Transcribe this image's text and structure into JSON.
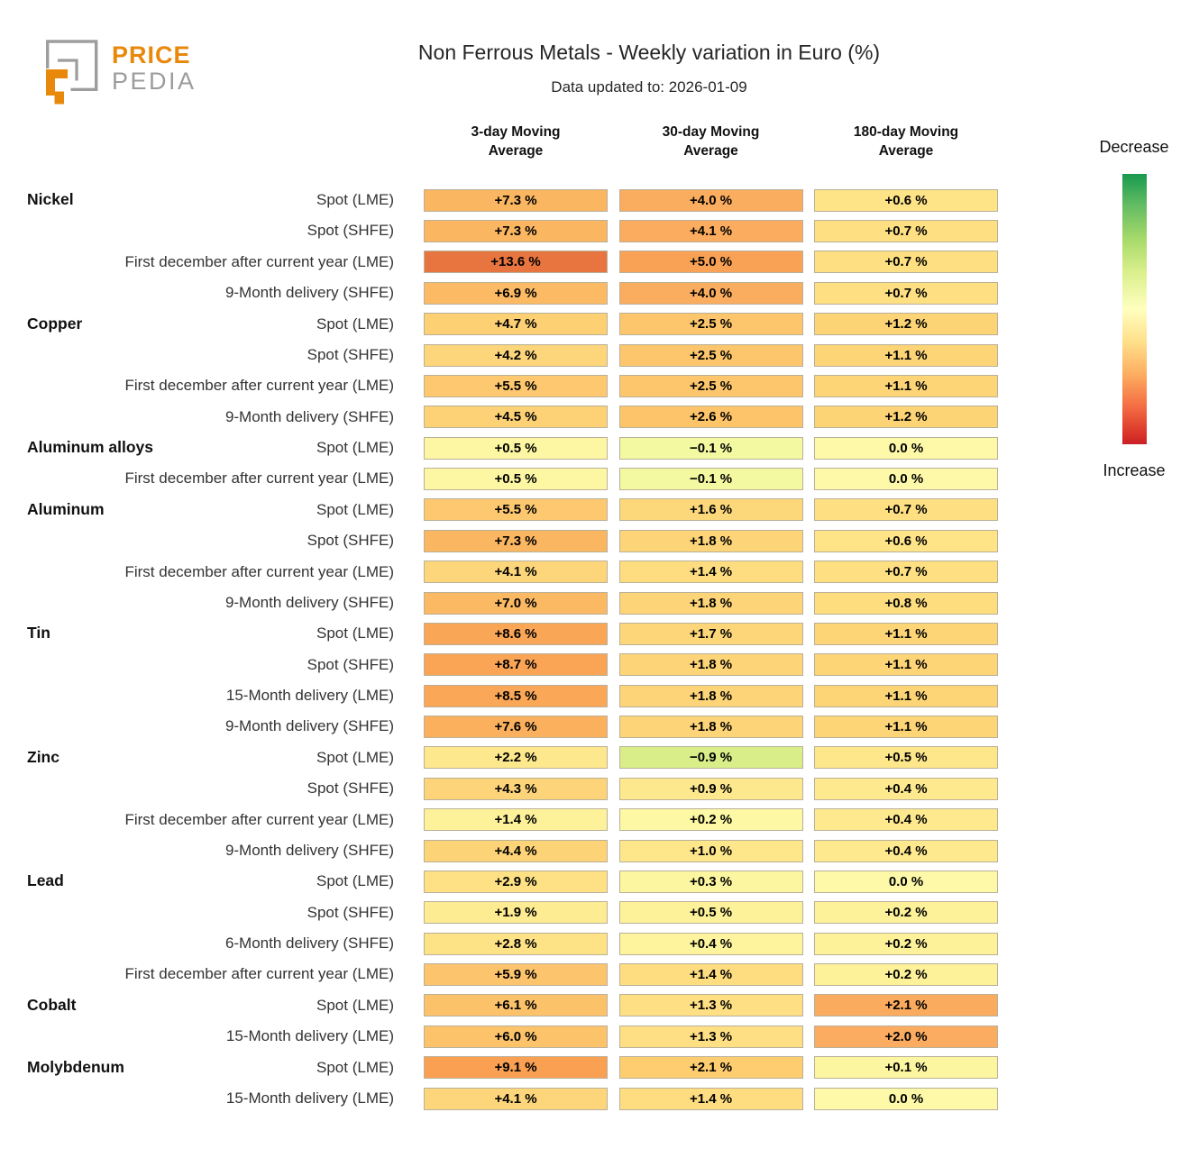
{
  "logo": {
    "line1": "PRICE",
    "line2": "PEDIA",
    "colors": {
      "orange": "#e8890c",
      "gray": "#9c9c9c"
    }
  },
  "chart_data": {
    "type": "heatmap",
    "title": "Non Ferrous Metals - Weekly variation in Euro (%)",
    "subtitle": "Data updated to: 2026-01-09",
    "columns": [
      "3-day Moving\nAverage",
      "30-day Moving\nAverage",
      "180-day Moving\nAverage"
    ],
    "unit": "%",
    "legend": {
      "top_label": "Decrease",
      "bottom_label": "Increase",
      "gradient": [
        "#18994f 0%",
        "#66bd63 12%",
        "#a6d96a 24%",
        "#d9ef8b 36%",
        "#ffffbf 50%",
        "#fee08b 62%",
        "#fdae61 74%",
        "#f46d43 86%",
        "#d73027 97%",
        "#c92027 100%"
      ]
    },
    "rows": [
      {
        "group": "Nickel",
        "label": "Spot (LME)",
        "values": [
          7.3,
          4.0,
          0.6
        ],
        "display": [
          "+7.3 %",
          "+4.0 %",
          "+0.6 %"
        ],
        "colors": [
          "#fbb661",
          "#fbad5f",
          "#fee387"
        ]
      },
      {
        "group": "",
        "label": "Spot (SHFE)",
        "values": [
          7.3,
          4.1,
          0.7
        ],
        "display": [
          "+7.3 %",
          "+4.1 %",
          "+0.7 %"
        ],
        "colors": [
          "#fbb661",
          "#fbac5e",
          "#fee083"
        ]
      },
      {
        "group": "",
        "label": "First december after current year (LME)",
        "values": [
          13.6,
          5.0,
          0.7
        ],
        "display": [
          "+13.6 %",
          "+5.0 %",
          "+0.7 %"
        ],
        "colors": [
          "#e8743f",
          "#f9a155",
          "#fee083"
        ]
      },
      {
        "group": "",
        "label": "9-Month delivery (SHFE)",
        "values": [
          6.9,
          4.0,
          0.7
        ],
        "display": [
          "+6.9 %",
          "+4.0 %",
          "+0.7 %"
        ],
        "colors": [
          "#fcba65",
          "#fbad5f",
          "#fee083"
        ]
      },
      {
        "group": "Copper",
        "label": "Spot (LME)",
        "values": [
          4.7,
          2.5,
          1.2
        ],
        "display": [
          "+4.7 %",
          "+2.5 %",
          "+1.2 %"
        ],
        "colors": [
          "#fdd074",
          "#fdc66c",
          "#fdd475"
        ]
      },
      {
        "group": "",
        "label": "Spot (SHFE)",
        "values": [
          4.2,
          2.5,
          1.1
        ],
        "display": [
          "+4.2 %",
          "+2.5 %",
          "+1.1 %"
        ],
        "colors": [
          "#fdd57a",
          "#fdc66c",
          "#fdd577"
        ]
      },
      {
        "group": "",
        "label": "First december after current year (LME)",
        "values": [
          5.5,
          2.5,
          1.1
        ],
        "display": [
          "+5.5 %",
          "+2.5 %",
          "+1.1 %"
        ],
        "colors": [
          "#fdc86f",
          "#fdc66c",
          "#fdd577"
        ]
      },
      {
        "group": "",
        "label": "9-Month delivery (SHFE)",
        "values": [
          4.5,
          2.6,
          1.2
        ],
        "display": [
          "+4.5 %",
          "+2.6 %",
          "+1.2 %"
        ],
        "colors": [
          "#fdd277",
          "#fdc46a",
          "#fdd475"
        ]
      },
      {
        "group": "Aluminum alloys",
        "label": "Spot (LME)",
        "values": [
          0.5,
          -0.1,
          0.0
        ],
        "display": [
          "+0.5 %",
          "−0.1 %",
          "0.0 %"
        ],
        "colors": [
          "#fdf7a3",
          "#f3f9a0",
          "#fdf9a8"
        ]
      },
      {
        "group": "",
        "label": "First december after current year (LME)",
        "values": [
          0.5,
          -0.1,
          0.0
        ],
        "display": [
          "+0.5 %",
          "−0.1 %",
          "0.0 %"
        ],
        "colors": [
          "#fdf7a3",
          "#f3f9a0",
          "#fdf9a8"
        ]
      },
      {
        "group": "Aluminum",
        "label": "Spot (LME)",
        "values": [
          5.5,
          1.6,
          0.7
        ],
        "display": [
          "+5.5 %",
          "+1.6 %",
          "+0.7 %"
        ],
        "colors": [
          "#fdc86f",
          "#fdd87b",
          "#fee083"
        ]
      },
      {
        "group": "",
        "label": "Spot (SHFE)",
        "values": [
          7.3,
          1.8,
          0.6
        ],
        "display": [
          "+7.3 %",
          "+1.8 %",
          "+0.6 %"
        ],
        "colors": [
          "#fbb661",
          "#fdd477",
          "#fee387"
        ]
      },
      {
        "group": "",
        "label": "First december after current year (LME)",
        "values": [
          4.1,
          1.4,
          0.7
        ],
        "display": [
          "+4.1 %",
          "+1.4 %",
          "+0.7 %"
        ],
        "colors": [
          "#fdd67b",
          "#fedd81",
          "#fee083"
        ]
      },
      {
        "group": "",
        "label": "9-Month delivery (SHFE)",
        "values": [
          7.0,
          1.8,
          0.8
        ],
        "display": [
          "+7.0 %",
          "+1.8 %",
          "+0.8 %"
        ],
        "colors": [
          "#fcb964",
          "#fdd477",
          "#fedd7f"
        ]
      },
      {
        "group": "Tin",
        "label": "Spot (LME)",
        "values": [
          8.6,
          1.7,
          1.1
        ],
        "display": [
          "+8.6 %",
          "+1.7 %",
          "+1.1 %"
        ],
        "colors": [
          "#faa657",
          "#fdd679",
          "#fdd577"
        ]
      },
      {
        "group": "",
        "label": "Spot (SHFE)",
        "values": [
          8.7,
          1.8,
          1.1
        ],
        "display": [
          "+8.7 %",
          "+1.8 %",
          "+1.1 %"
        ],
        "colors": [
          "#faa556",
          "#fdd477",
          "#fdd577"
        ]
      },
      {
        "group": "",
        "label": "15-Month delivery (LME)",
        "values": [
          8.5,
          1.8,
          1.1
        ],
        "display": [
          "+8.5 %",
          "+1.8 %",
          "+1.1 %"
        ],
        "colors": [
          "#faa758",
          "#fdd477",
          "#fdd577"
        ]
      },
      {
        "group": "",
        "label": "9-Month delivery (SHFE)",
        "values": [
          7.6,
          1.8,
          1.1
        ],
        "display": [
          "+7.6 %",
          "+1.8 %",
          "+1.1 %"
        ],
        "colors": [
          "#fbb05e",
          "#fdd477",
          "#fdd577"
        ]
      },
      {
        "group": "Zinc",
        "label": "Spot (LME)",
        "values": [
          2.2,
          -0.9,
          0.5
        ],
        "display": [
          "+2.2 %",
          "−0.9 %",
          "+0.5 %"
        ],
        "colors": [
          "#fee88d",
          "#d9ee89",
          "#fee68b"
        ]
      },
      {
        "group": "",
        "label": "Spot (SHFE)",
        "values": [
          4.3,
          0.9,
          0.4
        ],
        "display": [
          "+4.3 %",
          "+0.9 %",
          "+0.4 %"
        ],
        "colors": [
          "#fdd479",
          "#fee88e",
          "#fee98f"
        ]
      },
      {
        "group": "",
        "label": "First december after current year (LME)",
        "values": [
          1.4,
          0.2,
          0.4
        ],
        "display": [
          "+1.4 %",
          "+0.2 %",
          "+0.4 %"
        ],
        "colors": [
          "#fdf19a",
          "#fdf8a3",
          "#fee98f"
        ]
      },
      {
        "group": "",
        "label": "9-Month delivery (SHFE)",
        "values": [
          4.4,
          1.0,
          0.4
        ],
        "display": [
          "+4.4 %",
          "+1.0 %",
          "+0.4 %"
        ],
        "colors": [
          "#fdd378",
          "#fee68b",
          "#fee98f"
        ]
      },
      {
        "group": "Lead",
        "label": "Spot (LME)",
        "values": [
          2.9,
          0.3,
          0.0
        ],
        "display": [
          "+2.9 %",
          "+0.3 %",
          "0.0 %"
        ],
        "colors": [
          "#fee185",
          "#fdf6a0",
          "#fdf9a8"
        ]
      },
      {
        "group": "",
        "label": "Spot (SHFE)",
        "values": [
          1.9,
          0.5,
          0.2
        ],
        "display": [
          "+1.9 %",
          "+0.5 %",
          "+0.2 %"
        ],
        "colors": [
          "#feec92",
          "#fdf29a",
          "#fdf29a"
        ]
      },
      {
        "group": "",
        "label": "6-Month delivery (SHFE)",
        "values": [
          2.8,
          0.4,
          0.2
        ],
        "display": [
          "+2.8 %",
          "+0.4 %",
          "+0.2 %"
        ],
        "colors": [
          "#fee286",
          "#fdf49d",
          "#fdf29a"
        ]
      },
      {
        "group": "",
        "label": "First december after current year (LME)",
        "values": [
          5.9,
          1.4,
          0.2
        ],
        "display": [
          "+5.9 %",
          "+1.4 %",
          "+0.2 %"
        ],
        "colors": [
          "#fcc46c",
          "#fedd81",
          "#fdf29a"
        ]
      },
      {
        "group": "Cobalt",
        "label": "Spot (LME)",
        "values": [
          6.1,
          1.3,
          2.1
        ],
        "display": [
          "+6.1 %",
          "+1.3 %",
          "+2.1 %"
        ],
        "colors": [
          "#fcc26a",
          "#fedf83",
          "#fbab5e"
        ]
      },
      {
        "group": "",
        "label": "15-Month delivery (LME)",
        "values": [
          6.0,
          1.3,
          2.0
        ],
        "display": [
          "+6.0 %",
          "+1.3 %",
          "+2.0 %"
        ],
        "colors": [
          "#fcc36b",
          "#fedf83",
          "#fbac60"
        ]
      },
      {
        "group": "Molybdenum",
        "label": "Spot (LME)",
        "values": [
          9.1,
          2.1,
          0.1
        ],
        "display": [
          "+9.1 %",
          "+2.1 %",
          "+0.1 %"
        ],
        "colors": [
          "#f9a053",
          "#fdcd70",
          "#fdf6a1"
        ]
      },
      {
        "group": "",
        "label": "15-Month delivery (LME)",
        "values": [
          4.1,
          1.4,
          0.0
        ],
        "display": [
          "+4.1 %",
          "+1.4 %",
          "0.0 %"
        ],
        "colors": [
          "#fdd67b",
          "#fedd81",
          "#fdf9a8"
        ]
      }
    ]
  }
}
